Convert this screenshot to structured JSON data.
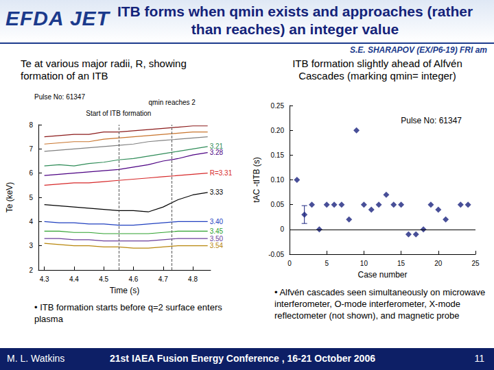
{
  "header": {
    "logo": "EFDA JET",
    "title": "ITB forms when qmin exists and approaches (rather than reaches) an integer value",
    "byline": "S.E. SHARAPOV (EX/P6-19) FRI am"
  },
  "panels": [
    {
      "heading": "Te at various major radii, R, showing formation of an ITB",
      "bullet": "• ITB formation starts before q=2 surface enters plasma"
    },
    {
      "heading": "ITB formation slightly ahead of Alfvén Cascades (marking qmin= integer)",
      "bullet": "• Alfvén cascades seen simultaneously on microwave interferometer, O-mode interferometer, X-mode reflectometer (not shown), and magnetic probe"
    }
  ],
  "footer": {
    "author": "M. L. Watkins",
    "conference": "21st IAEA Fusion Energy Conference , 16-21 October 2006",
    "page": "11"
  },
  "chart_data": [
    {
      "type": "line",
      "x_label": "Time (s)",
      "y_label": "Te (keV)",
      "x": [
        4.3,
        4.35,
        4.4,
        4.45,
        4.5,
        4.55,
        4.6,
        4.65,
        4.7,
        4.75,
        4.8,
        4.85
      ],
      "xlim": [
        4.28,
        4.86
      ],
      "xticks": [
        4.3,
        4.4,
        4.5,
        4.6,
        4.7,
        4.8
      ],
      "ylim": [
        2,
        8
      ],
      "yticks": [
        2,
        3,
        4,
        5,
        6,
        7,
        8
      ],
      "grid": false,
      "annotations": [
        "Pulse No: 61347"
      ],
      "markers": [
        {
          "x": 4.55,
          "label": "Start of ITB formation"
        },
        {
          "x": 4.73,
          "label": "qmin reaches 2"
        }
      ],
      "series": [
        {
          "name": null,
          "color": "#8b1a1a",
          "values": [
            7.5,
            7.55,
            7.6,
            7.6,
            7.7,
            7.7,
            7.75,
            7.8,
            7.85,
            7.9,
            7.95,
            7.95
          ]
        },
        {
          "name": null,
          "color": "#c8742c",
          "values": [
            7.2,
            7.25,
            7.3,
            7.3,
            7.4,
            7.45,
            7.5,
            7.55,
            7.6,
            7.65,
            7.7,
            7.7
          ]
        },
        {
          "name": null,
          "color": "#808080",
          "values": [
            6.9,
            6.95,
            7.0,
            7.05,
            7.1,
            7.15,
            7.2,
            7.3,
            7.35,
            7.4,
            7.45,
            7.5
          ]
        },
        {
          "name": "3.21",
          "color": "#2e8b57",
          "values": [
            6.3,
            6.35,
            6.3,
            6.4,
            6.45,
            6.55,
            6.6,
            6.7,
            6.8,
            6.9,
            7.0,
            7.1
          ]
        },
        {
          "name": "3.28",
          "color": "#4b0082",
          "values": [
            5.9,
            5.95,
            6.0,
            6.05,
            6.1,
            6.15,
            6.25,
            6.35,
            6.5,
            6.6,
            6.75,
            6.85
          ]
        },
        {
          "name": "R=3.31",
          "color": "#d62728",
          "values": [
            5.5,
            5.55,
            5.6,
            5.6,
            5.65,
            5.7,
            5.75,
            5.8,
            5.85,
            5.9,
            5.95,
            6.0
          ]
        },
        {
          "name": "3.33",
          "color": "#000000",
          "values": [
            4.7,
            4.65,
            4.6,
            4.55,
            4.5,
            4.45,
            4.45,
            4.4,
            4.6,
            4.9,
            5.1,
            5.2
          ]
        },
        {
          "name": "3.40",
          "color": "#1f3fbf",
          "values": [
            4.0,
            3.95,
            3.95,
            3.9,
            3.9,
            3.85,
            3.85,
            3.9,
            3.95,
            4.0,
            4.0,
            4.0
          ]
        },
        {
          "name": "3.45",
          "color": "#2ca02c",
          "values": [
            3.6,
            3.6,
            3.55,
            3.55,
            3.5,
            3.5,
            3.5,
            3.5,
            3.55,
            3.6,
            3.6,
            3.6
          ]
        },
        {
          "name": "3.50",
          "color": "#6a3d9a",
          "values": [
            3.3,
            3.3,
            3.25,
            3.25,
            3.2,
            3.2,
            3.2,
            3.2,
            3.25,
            3.3,
            3.3,
            3.3
          ]
        },
        {
          "name": "3.54",
          "color": "#b8860b",
          "values": [
            3.1,
            3.05,
            3.0,
            3.0,
            2.95,
            2.95,
            2.9,
            2.9,
            2.95,
            3.0,
            3.0,
            3.0
          ]
        }
      ]
    },
    {
      "type": "scatter",
      "x_label": "Case number",
      "y_label": "tAC -tITB (s)",
      "x": [
        1,
        2,
        3,
        4,
        5,
        6,
        7,
        8,
        9,
        10,
        11,
        12,
        13,
        14,
        15,
        16,
        17,
        18,
        19,
        20,
        21,
        23,
        24
      ],
      "values": [
        0.1,
        0.03,
        0.05,
        0.0,
        0.05,
        0.05,
        0.05,
        0.02,
        0.2,
        0.05,
        0.04,
        0.05,
        0.07,
        0.05,
        0.05,
        -0.01,
        -0.01,
        0.0,
        0.05,
        0.04,
        0.02,
        0.05,
        0.05
      ],
      "error": [
        null,
        0.018,
        null,
        null,
        null,
        null,
        null,
        null,
        null,
        null,
        null,
        null,
        null,
        null,
        null,
        null,
        null,
        null,
        null,
        null,
        null,
        null,
        null
      ],
      "color": "#1a237e",
      "marker": "diamond",
      "xlim": [
        0,
        25
      ],
      "xticks": [
        0,
        5,
        10,
        15,
        20,
        25
      ],
      "ylim": [
        -0.05,
        0.25
      ],
      "yticks": [
        -0.05,
        0,
        0.05,
        {
          "value": 0.1,
          "label": "0.10"
        },
        0.15,
        {
          "value": 0.2,
          "label": "0.20"
        },
        0.25
      ],
      "grid": false,
      "annotations": [
        "Pulse No: 61347"
      ]
    }
  ]
}
